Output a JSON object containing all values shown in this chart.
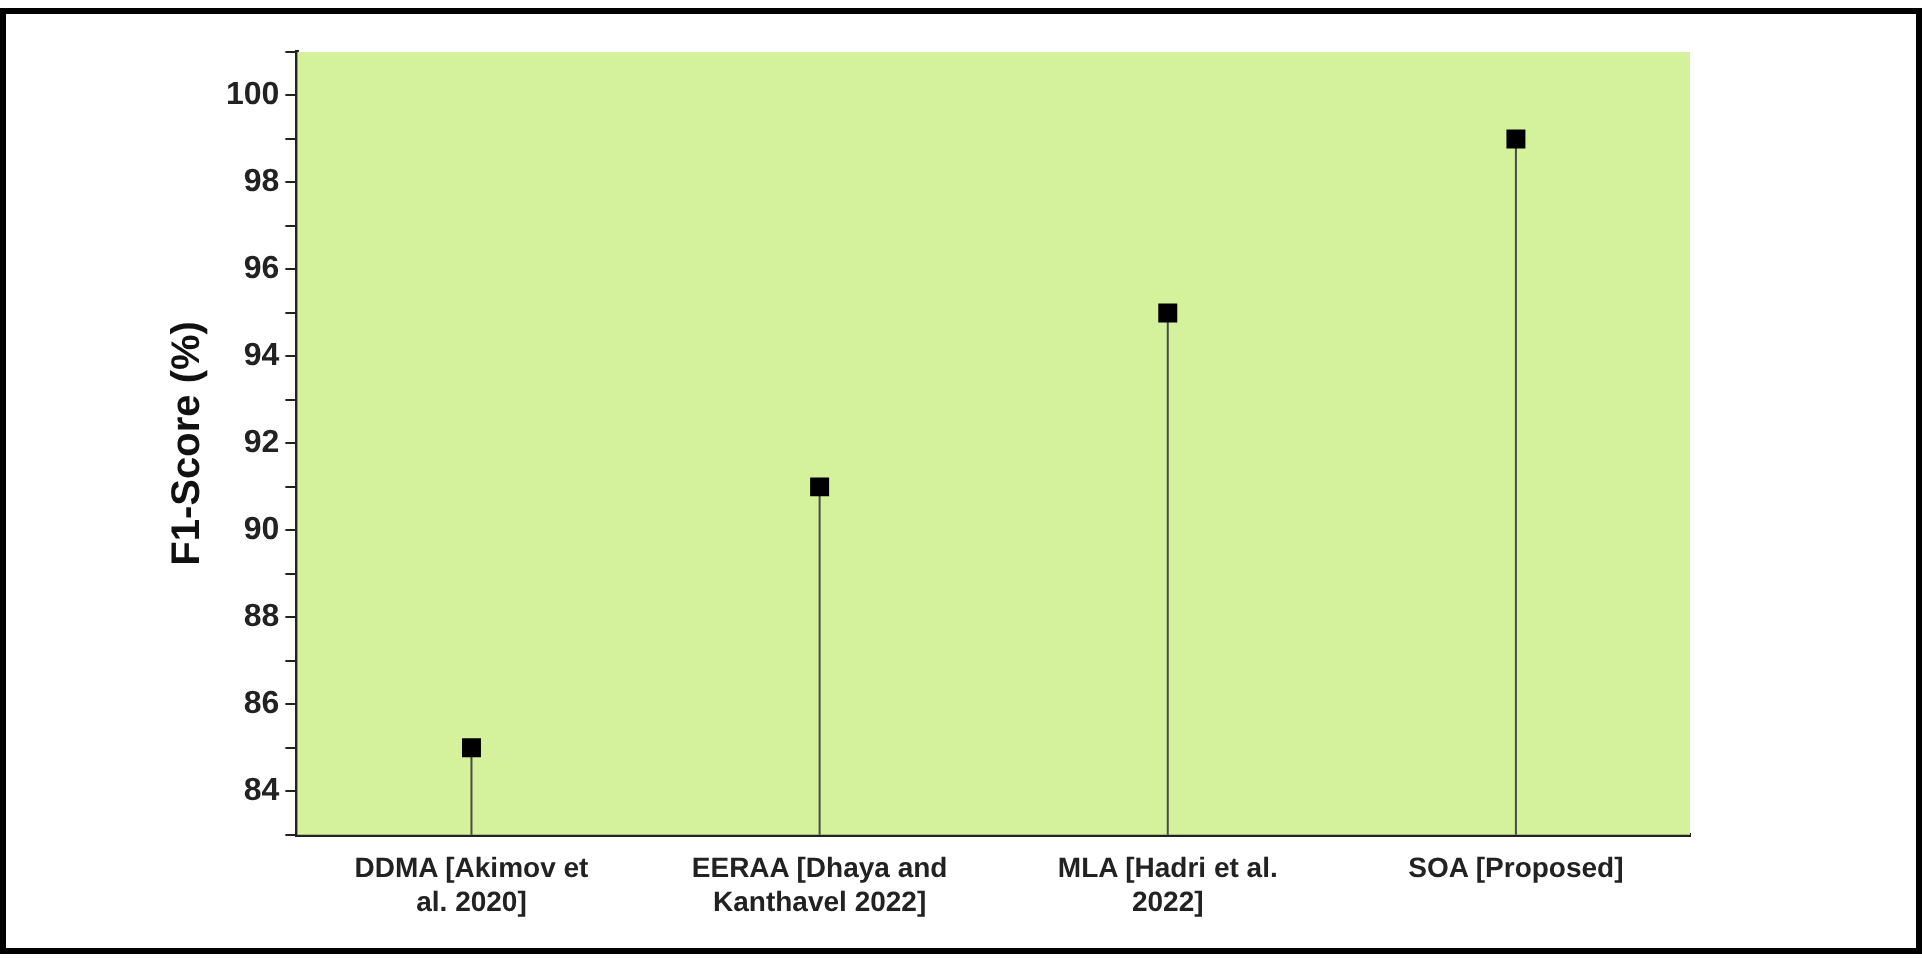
{
  "chart_data": {
    "type": "lollipop",
    "ylabel": "F1-Score (%)",
    "categories": [
      "DDMA [Akimov et al. 2020]",
      "EERAA [Dhaya and Kanthavel 2022]",
      "MLA [Hadri et al. 2022]",
      "SOA [Proposed]"
    ],
    "values": [
      85,
      91,
      95,
      99
    ],
    "color": "#000000",
    "marker": "square",
    "ylim": [
      83,
      101
    ],
    "yticks": [
      {
        "value": 83,
        "label": null
      },
      84,
      {
        "value": 85,
        "label": null
      },
      86,
      {
        "value": 87,
        "label": null
      },
      88,
      {
        "value": 89,
        "label": null
      },
      90,
      {
        "value": 91,
        "label": null
      },
      92,
      {
        "value": 93,
        "label": null
      },
      94,
      {
        "value": 95,
        "label": null
      },
      96,
      {
        "value": 97,
        "label": null
      },
      98,
      {
        "value": 99,
        "label": null
      },
      100,
      {
        "value": 101,
        "label": null
      }
    ],
    "legend": false
  }
}
